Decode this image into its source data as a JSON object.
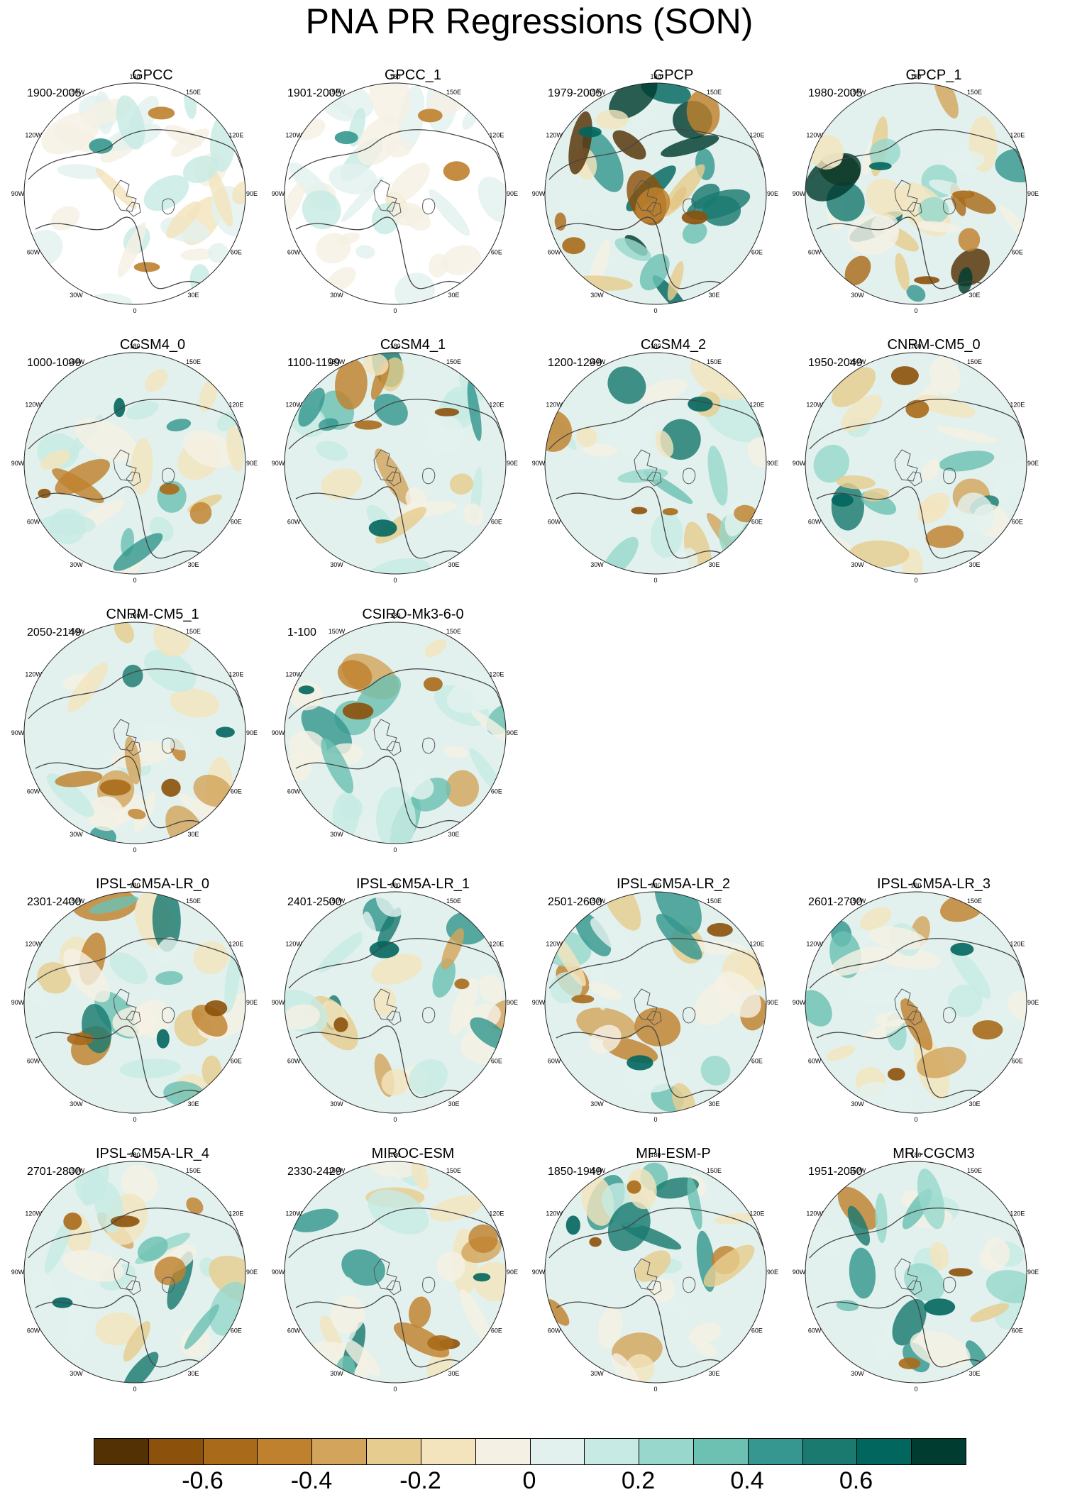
{
  "title": "PNA PR Regressions (SON)",
  "lon_labels": [
    "180",
    "150E",
    "120E",
    "90E",
    "60E",
    "30E",
    "0",
    "30W",
    "60W",
    "90W",
    "120W",
    "150W"
  ],
  "panels": [
    {
      "model": "GPCC",
      "years": "1900-2005",
      "style": "obs-masked"
    },
    {
      "model": "GPCC_1",
      "years": "1901-2005",
      "style": "obs-masked"
    },
    {
      "model": "GPCP",
      "years": "1979-2005",
      "style": "obs"
    },
    {
      "model": "GPCP_1",
      "years": "1980-2005",
      "style": "obs"
    },
    {
      "model": "CCSM4_0",
      "years": "1000-1099",
      "style": "model"
    },
    {
      "model": "CCSM4_1",
      "years": "1100-1199",
      "style": "model"
    },
    {
      "model": "CCSM4_2",
      "years": "1200-1299",
      "style": "model"
    },
    {
      "model": "CNRM-CM5_0",
      "years": "1950-2049",
      "style": "model"
    },
    {
      "model": "CNRM-CM5_1",
      "years": "2050-2149",
      "style": "model"
    },
    {
      "model": "CSIRO-Mk3-6-0",
      "years": "1-100",
      "style": "model"
    },
    {
      "model": "IPSL-CM5A-LR_0",
      "years": "2301-2400",
      "style": "model"
    },
    {
      "model": "IPSL-CM5A-LR_1",
      "years": "2401-2500",
      "style": "model"
    },
    {
      "model": "IPSL-CM5A-LR_2",
      "years": "2501-2600",
      "style": "model"
    },
    {
      "model": "IPSL-CM5A-LR_3",
      "years": "2601-2700",
      "style": "model"
    },
    {
      "model": "IPSL-CM5A-LR_4",
      "years": "2701-2800",
      "style": "model"
    },
    {
      "model": "MIROC-ESM",
      "years": "2330-2429",
      "style": "model"
    },
    {
      "model": "MPI-ESM-P",
      "years": "1850-1949",
      "style": "model"
    },
    {
      "model": "MRI-CGCM3",
      "years": "1951-2050",
      "style": "model"
    }
  ],
  "colorbar": {
    "colors": [
      "#543005",
      "#8c510a",
      "#a96a1a",
      "#bf812d",
      "#d3a55c",
      "#e6cd8f",
      "#f3e4bd",
      "#f5f0e4",
      "#e3f1ee",
      "#c7eae4",
      "#98d8cc",
      "#6cc1b2",
      "#35978f",
      "#1a7a70",
      "#01665e",
      "#003c30"
    ],
    "labels": [
      "-0.6",
      "-0.4",
      "-0.2",
      "0",
      "0.2",
      "0.4",
      "0.6"
    ],
    "label_values": [
      -0.6,
      -0.4,
      -0.2,
      0,
      0.2,
      0.4,
      0.6
    ],
    "range": [
      -0.8,
      0.8
    ]
  }
}
